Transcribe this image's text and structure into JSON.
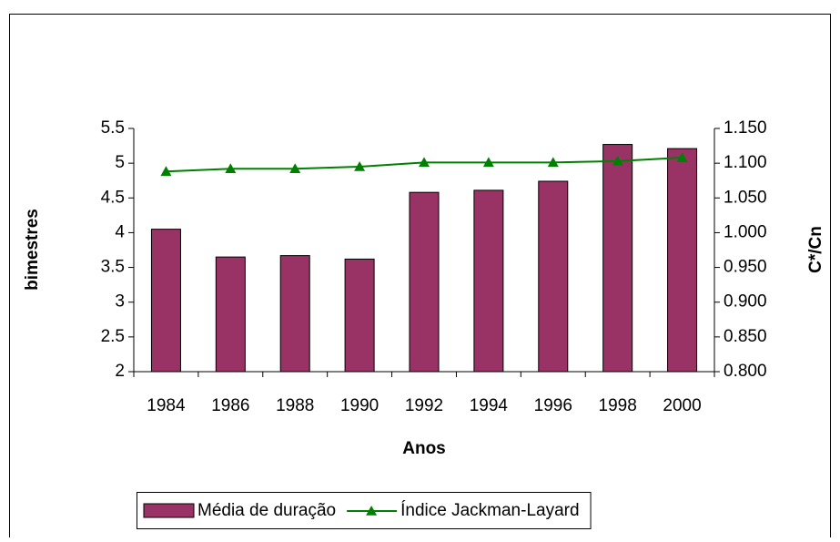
{
  "chart_data": {
    "type": "bar",
    "x_label": "Anos",
    "y_label": "bimestres",
    "y2_label": "C*/Cn",
    "categories": [
      "1984",
      "1986",
      "1988",
      "1990",
      "1992",
      "1994",
      "1996",
      "1998",
      "2000"
    ],
    "series": [
      {
        "name": "Média de duração",
        "type": "bar",
        "color": "#993366",
        "values": [
          4.05,
          3.65,
          3.67,
          3.62,
          4.58,
          4.61,
          4.74,
          5.27,
          5.21
        ]
      },
      {
        "name": "Índice Jackman-Layard",
        "type": "line",
        "color": "#008000",
        "axis": "y2",
        "values": [
          1.088,
          1.092,
          1.092,
          1.095,
          1.101,
          1.101,
          1.101,
          1.103,
          1.108
        ]
      }
    ],
    "ylim": [
      2,
      5.5
    ],
    "yticks": [
      2,
      2.5,
      3,
      3.5,
      4,
      4.5,
      5,
      5.5
    ],
    "y2lim": [
      0.8,
      1.15
    ],
    "y2ticks": [
      {
        "value": 0.8,
        "label": "0.800"
      },
      {
        "value": 0.85,
        "label": "0.850"
      },
      {
        "value": 0.9,
        "label": "0.900"
      },
      {
        "value": 0.95,
        "label": "0.950"
      },
      {
        "value": 1.0,
        "label": "1.000"
      },
      {
        "value": 1.05,
        "label": "1.050"
      },
      {
        "value": 1.1,
        "label": "1.100"
      },
      {
        "value": 1.15,
        "label": "1.150"
      }
    ],
    "grid": false,
    "legend": "bottom"
  }
}
